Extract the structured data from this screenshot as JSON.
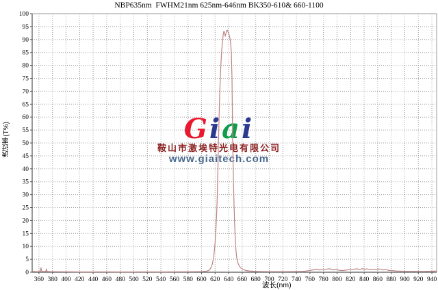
{
  "chart_data": {
    "type": "line",
    "title": "NBP635nm  FWHM21nm 625nm-646nm BK350-610& 660-1100",
    "xlabel": "波长(nm)",
    "ylabel": "透过率(T%)",
    "xlim": [
      350,
      947
    ],
    "ylim": [
      0,
      100
    ],
    "x_ticks": [
      360,
      380,
      400,
      420,
      440,
      460,
      480,
      500,
      520,
      540,
      560,
      580,
      600,
      620,
      640,
      660,
      680,
      700,
      720,
      740,
      760,
      780,
      800,
      820,
      840,
      860,
      880,
      900,
      920,
      940
    ],
    "y_ticks": [
      0,
      5,
      10,
      15,
      20,
      25,
      30,
      35,
      40,
      45,
      50,
      55,
      60,
      65,
      70,
      75,
      80,
      85,
      90,
      95,
      100
    ],
    "grid": "dotted both axes",
    "legend": "none",
    "line_color": "#bd8282",
    "grid_color": "#9a9a9a",
    "axis_color": "#555555",
    "series": [
      {
        "name": "transmission",
        "points": [
          [
            350,
            0.3
          ],
          [
            356,
            0.2
          ],
          [
            360,
            0.25
          ],
          [
            362,
            0.3
          ],
          [
            363,
            1.8
          ],
          [
            364,
            0.4
          ],
          [
            366,
            0.25
          ],
          [
            370,
            0.3
          ],
          [
            371,
            1.1
          ],
          [
            372,
            0.3
          ],
          [
            376,
            0.2
          ],
          [
            380,
            0.2
          ],
          [
            390,
            0.15
          ],
          [
            400,
            0.15
          ],
          [
            420,
            0.1
          ],
          [
            440,
            0.1
          ],
          [
            460,
            0.12
          ],
          [
            480,
            0.1
          ],
          [
            500,
            0.1
          ],
          [
            520,
            0.12
          ],
          [
            540,
            0.1
          ],
          [
            560,
            0.12
          ],
          [
            580,
            0.15
          ],
          [
            595,
            0.2
          ],
          [
            600,
            0.25
          ],
          [
            604,
            0.3
          ],
          [
            607,
            0.4
          ],
          [
            610,
            0.6
          ],
          [
            612,
            1
          ],
          [
            614,
            1.8
          ],
          [
            616,
            3.2
          ],
          [
            618,
            6
          ],
          [
            619,
            8.5
          ],
          [
            620,
            11.5
          ],
          [
            621,
            15.5
          ],
          [
            622,
            21
          ],
          [
            623,
            28
          ],
          [
            624,
            37
          ],
          [
            625,
            50
          ],
          [
            626,
            61
          ],
          [
            627,
            70
          ],
          [
            628,
            77
          ],
          [
            629,
            82.5
          ],
          [
            630,
            86.5
          ],
          [
            631,
            89.5
          ],
          [
            632,
            92
          ],
          [
            633,
            93.3
          ],
          [
            634,
            92.5
          ],
          [
            635,
            91.4
          ],
          [
            636,
            92.2
          ],
          [
            637,
            93.4
          ],
          [
            638,
            93.6
          ],
          [
            639,
            93
          ],
          [
            640,
            92.4
          ],
          [
            641,
            91.6
          ],
          [
            642,
            90.4
          ],
          [
            643,
            88.5
          ],
          [
            644,
            85
          ],
          [
            645,
            75
          ],
          [
            646,
            50
          ],
          [
            647,
            36
          ],
          [
            648,
            26
          ],
          [
            649,
            17.5
          ],
          [
            650,
            11.5
          ],
          [
            651,
            7.8
          ],
          [
            652,
            5.5
          ],
          [
            654,
            3.4
          ],
          [
            656,
            2.3
          ],
          [
            658,
            1.7
          ],
          [
            660,
            1.3
          ],
          [
            663,
            0.9
          ],
          [
            666,
            0.65
          ],
          [
            670,
            0.5
          ],
          [
            675,
            0.4
          ],
          [
            680,
            0.3
          ],
          [
            690,
            0.25
          ],
          [
            700,
            0.2
          ],
          [
            712,
            0.22
          ],
          [
            724,
            0.2
          ],
          [
            736,
            0.25
          ],
          [
            748,
            0.3
          ],
          [
            754,
            0.45
          ],
          [
            758,
            0.6
          ],
          [
            762,
            0.8
          ],
          [
            766,
            0.95
          ],
          [
            770,
            1.05
          ],
          [
            774,
            0.9
          ],
          [
            778,
            1.0
          ],
          [
            782,
            1.1
          ],
          [
            786,
            1.25
          ],
          [
            789,
            1.35
          ],
          [
            792,
            1.05
          ],
          [
            795,
            0.9
          ],
          [
            798,
            1.0
          ],
          [
            802,
            0.85
          ],
          [
            806,
            0.65
          ],
          [
            810,
            0.7
          ],
          [
            814,
            0.85
          ],
          [
            818,
            1.0
          ],
          [
            822,
            1.1
          ],
          [
            826,
            1.2
          ],
          [
            829,
            1.35
          ],
          [
            832,
            1.1
          ],
          [
            835,
            1.2
          ],
          [
            838,
            1.4
          ],
          [
            841,
            1.15
          ],
          [
            844,
            1.3
          ],
          [
            847,
            1.1
          ],
          [
            850,
            1.2
          ],
          [
            853,
            1.0
          ],
          [
            856,
            1.1
          ],
          [
            859,
            1.05
          ],
          [
            862,
            1.3
          ],
          [
            865,
            1.1
          ],
          [
            868,
            0.9
          ],
          [
            872,
            1.0
          ],
          [
            875,
            0.8
          ],
          [
            878,
            0.7
          ],
          [
            882,
            0.6
          ],
          [
            886,
            0.5
          ],
          [
            890,
            0.45
          ],
          [
            896,
            0.4
          ],
          [
            902,
            0.35
          ],
          [
            910,
            0.3
          ],
          [
            918,
            0.3
          ],
          [
            926,
            0.32
          ],
          [
            934,
            0.36
          ],
          [
            940,
            0.4
          ],
          [
            947,
            0.45
          ]
        ]
      }
    ]
  },
  "watermark": {
    "logo_letters": [
      {
        "char": "G",
        "color": "#e8192c"
      },
      {
        "char": "i",
        "color": "#2b3990"
      },
      {
        "char": "a",
        "color": "#0f9d4a"
      },
      {
        "char": "i",
        "color": "#2b3990"
      }
    ],
    "company": "鞍山市激埃特光电有限公司",
    "company_color": "#8b1f1f",
    "url": "www.giaitech.com",
    "url_color": "#47688e"
  }
}
